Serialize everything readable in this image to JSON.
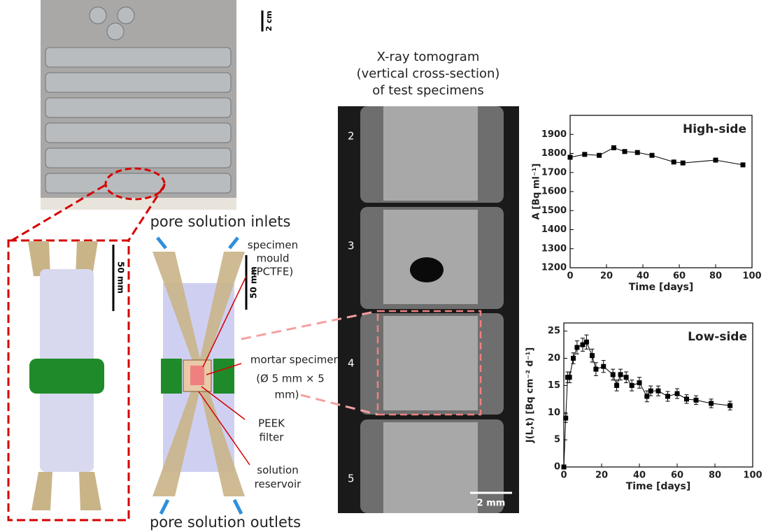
{
  "photo": {
    "scale_label": "2 cm"
  },
  "diagram": {
    "inlets_label": "pore solution inlets",
    "outlets_label": "pore solution outlets",
    "scale_left": "50 mm",
    "scale_right": "50 mm",
    "mould_label": [
      "specimen",
      "mould",
      "(PCTFE)"
    ],
    "specimen_label": [
      "mortar specimen",
      "(Ø 5 mm × 5",
      "mm)"
    ],
    "filter_label": [
      "PEEK",
      "filter"
    ],
    "reservoir_label": [
      "solution",
      "reservoir"
    ]
  },
  "tomogram": {
    "title": [
      "X-ray tomogram",
      "(vertical cross-section)",
      "of test specimens"
    ],
    "specimen_numbers": [
      "2",
      "3",
      "4",
      "5"
    ],
    "scale_label": "2 mm"
  },
  "chart_data": [
    {
      "type": "line",
      "title": "High-side",
      "x_label": "Time [days]",
      "y_label": "A [Bq ml⁻¹]",
      "x": [
        0,
        8,
        16,
        24,
        30,
        37,
        45,
        57,
        62,
        80,
        95
      ],
      "series": [
        {
          "color": "#000000",
          "values": [
            1780,
            1795,
            1790,
            1830,
            1810,
            1805,
            1790,
            1755,
            1750,
            1765,
            1740
          ]
        }
      ],
      "xlim": [
        0,
        100
      ],
      "xticks": [
        0,
        20,
        40,
        60,
        80,
        100
      ],
      "ylim": [
        1200,
        2000
      ],
      "yticks": [
        1200,
        1300,
        1400,
        1500,
        1600,
        1700,
        1800,
        1900
      ]
    },
    {
      "type": "line",
      "title": "Low-side",
      "x_label": "Time [days]",
      "y_label": "J(L,t) [Bq cm⁻² d⁻¹]",
      "x": [
        0,
        1,
        2,
        3,
        5,
        7,
        10,
        12,
        15,
        17,
        21,
        26,
        28,
        30,
        33,
        36,
        40,
        44,
        46,
        50,
        55,
        60,
        65,
        70,
        78,
        88
      ],
      "series": [
        {
          "color": "#000000",
          "values": [
            0,
            9,
            16.5,
            16.5,
            20,
            22,
            22.5,
            23,
            20.5,
            18,
            18.5,
            17,
            15,
            17,
            16.5,
            15,
            15.5,
            13,
            14,
            14,
            13,
            13.5,
            12.5,
            12.3,
            11.7,
            11.3
          ],
          "errors": [
            0.3,
            0.8,
            1,
            1,
            1,
            1.2,
            1.2,
            1.3,
            1.2,
            1.2,
            1.1,
            1,
            1,
            1,
            1,
            1,
            1,
            1,
            0.9,
            0.9,
            0.9,
            0.9,
            0.8,
            0.8,
            0.8,
            0.8
          ]
        }
      ],
      "xlim": [
        0,
        100
      ],
      "xticks": [
        0,
        20,
        40,
        60,
        80,
        100
      ],
      "ylim": [
        0,
        26.5
      ],
      "yticks": [
        0,
        5,
        10,
        15,
        20,
        25
      ]
    }
  ]
}
